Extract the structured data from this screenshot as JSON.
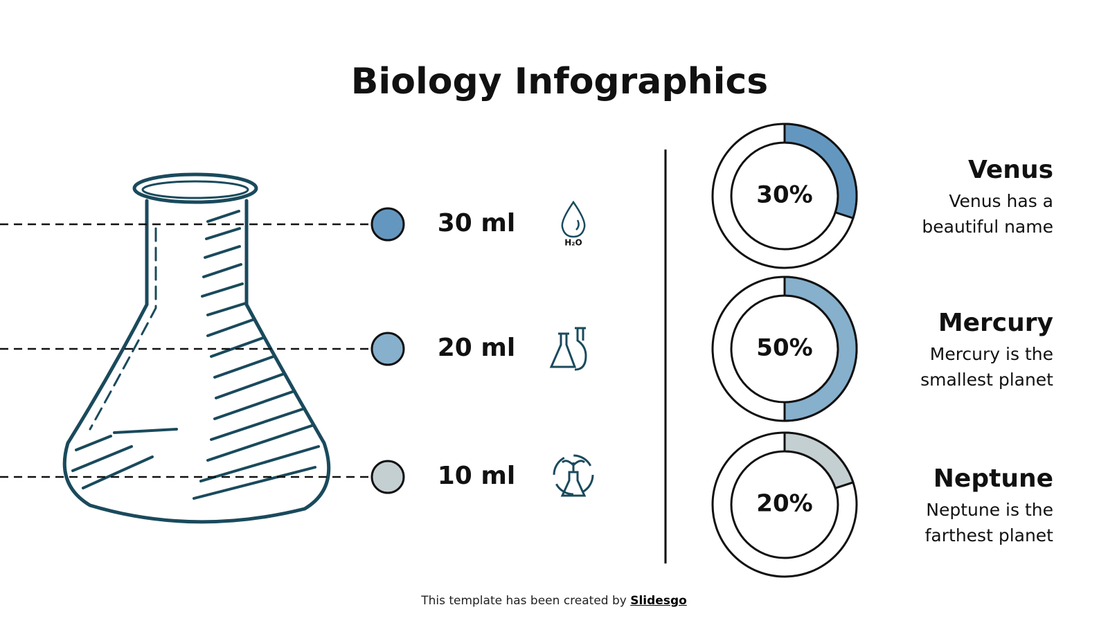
{
  "header": {
    "title": "Biology Infographics"
  },
  "measurements": [
    {
      "label": "30 ml",
      "color": "#6497bf",
      "icon_label": "H₂O"
    },
    {
      "label": "20 ml",
      "color": "#86b0cc"
    },
    {
      "label": "10 ml",
      "color": "#c4cfd2"
    }
  ],
  "donuts": [
    {
      "value": 30,
      "label": "30%",
      "color": "#6497bf",
      "name": "Venus",
      "description": [
        "Venus has a",
        "beautiful name"
      ]
    },
    {
      "value": 50,
      "label": "50%",
      "color": "#86b0cc",
      "name": "Mercury",
      "description": [
        "Mercury is the",
        "smallest planet"
      ]
    },
    {
      "value": 20,
      "label": "20%",
      "color": "#c4cfd2",
      "name": "Neptune",
      "description": [
        "Neptune is the",
        "farthest planet"
      ]
    }
  ],
  "footer": {
    "text": "This template has been created by",
    "link": "Slidesgo"
  }
}
